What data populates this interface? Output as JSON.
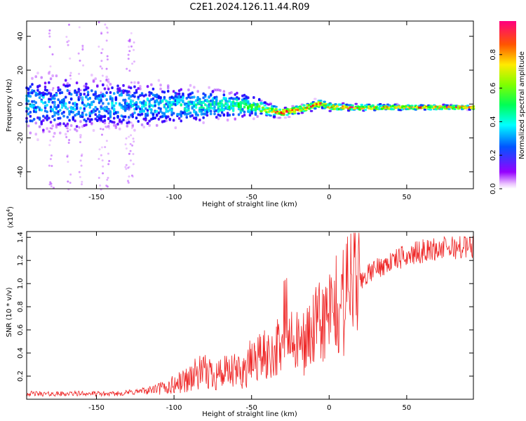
{
  "title": "C2E1.2024.126.11.44.R09",
  "colors": {
    "snr_line": "#ee2222",
    "frame": "#000000"
  },
  "chart_data": [
    {
      "type": "heatmap",
      "xlabel": "Height of straight line (km)",
      "ylabel": "Frequency (Hz)",
      "xlim": [
        -195,
        93
      ],
      "ylim": [
        -50,
        49
      ],
      "xticks": [
        -150,
        -100,
        -50,
        0,
        50
      ],
      "xtick_labels": [
        "-150",
        "-100",
        "-50",
        "0",
        "50"
      ],
      "yticks": [
        -40,
        -20,
        0,
        20,
        40
      ],
      "ytick_labels": [
        "-40",
        "-20",
        "0",
        "20",
        "40"
      ],
      "colorbar": {
        "label": "Normalized spectral amplitude",
        "range": [
          0,
          1
        ],
        "ticks": [
          0.0,
          0.2,
          0.4,
          0.6,
          0.8
        ],
        "tick_labels": [
          "0.0",
          "0.2",
          "0.4",
          "0.6",
          "0.8"
        ]
      },
      "ridge": [
        {
          "x": -195,
          "f": 0.0,
          "amp": 0.35,
          "spread": 14
        },
        {
          "x": -150,
          "f": 0.0,
          "amp": 0.35,
          "spread": 12
        },
        {
          "x": -100,
          "f": -1.0,
          "amp": 0.4,
          "spread": 9
        },
        {
          "x": -75,
          "f": -0.5,
          "amp": 0.45,
          "spread": 7
        },
        {
          "x": -50,
          "f": -1.0,
          "amp": 0.55,
          "spread": 5
        },
        {
          "x": -40,
          "f": -3.5,
          "amp": 0.7,
          "spread": 3
        },
        {
          "x": -30,
          "f": -5.0,
          "amp": 0.9,
          "spread": 2
        },
        {
          "x": -20,
          "f": -3.5,
          "amp": 0.85,
          "spread": 2
        },
        {
          "x": -5,
          "f": 0.5,
          "amp": 0.9,
          "spread": 2
        },
        {
          "x": 0,
          "f": -1.5,
          "amp": 0.8,
          "spread": 2
        },
        {
          "x": 10,
          "f": -2.0,
          "amp": 0.95,
          "spread": 1.5
        },
        {
          "x": 30,
          "f": -2.0,
          "amp": 0.8,
          "spread": 1.5
        },
        {
          "x": 60,
          "f": -2.0,
          "amp": 0.9,
          "spread": 1.2
        },
        {
          "x": 93,
          "f": -2.0,
          "amp": 1.0,
          "spread": 1.0
        }
      ]
    },
    {
      "type": "line",
      "xlabel": "Height of straight line (km)",
      "ylabel": "SNR (10 * v/v)",
      "y_multiplier": "(x10",
      "y_multiplier_exp": "4",
      "y_multiplier_close": ")",
      "xlim": [
        -195,
        93
      ],
      "ylim": [
        0,
        14500
      ],
      "xticks": [
        -150,
        -100,
        -50,
        0,
        50
      ],
      "xtick_labels": [
        "-150",
        "-100",
        "-50",
        "0",
        "50"
      ],
      "yticks": [
        2000,
        4000,
        6000,
        8000,
        10000,
        12000,
        14000
      ],
      "ytick_labels": [
        "0.2",
        "0.4",
        "0.6",
        "0.8",
        "1.0",
        "1.2",
        "1.4"
      ],
      "series": [
        {
          "x": [
            -195,
            -180,
            -160,
            -140,
            -120,
            -105,
            -95,
            -85,
            -75,
            -65,
            -55,
            -45,
            -40,
            -35,
            -30,
            -25,
            -20,
            -15,
            -10,
            -5,
            0,
            5,
            10,
            15,
            20,
            25,
            30,
            40,
            50,
            60,
            70,
            80,
            93
          ],
          "y": [
            500,
            450,
            500,
            450,
            700,
            1000,
            1500,
            2200,
            2300,
            2200,
            2500,
            3800,
            3700,
            4300,
            4600,
            4900,
            4700,
            5100,
            5800,
            6700,
            7100,
            7900,
            8700,
            9500,
            10200,
            10800,
            11300,
            11900,
            12400,
            12800,
            13000,
            13100,
            13200
          ]
        }
      ]
    }
  ]
}
